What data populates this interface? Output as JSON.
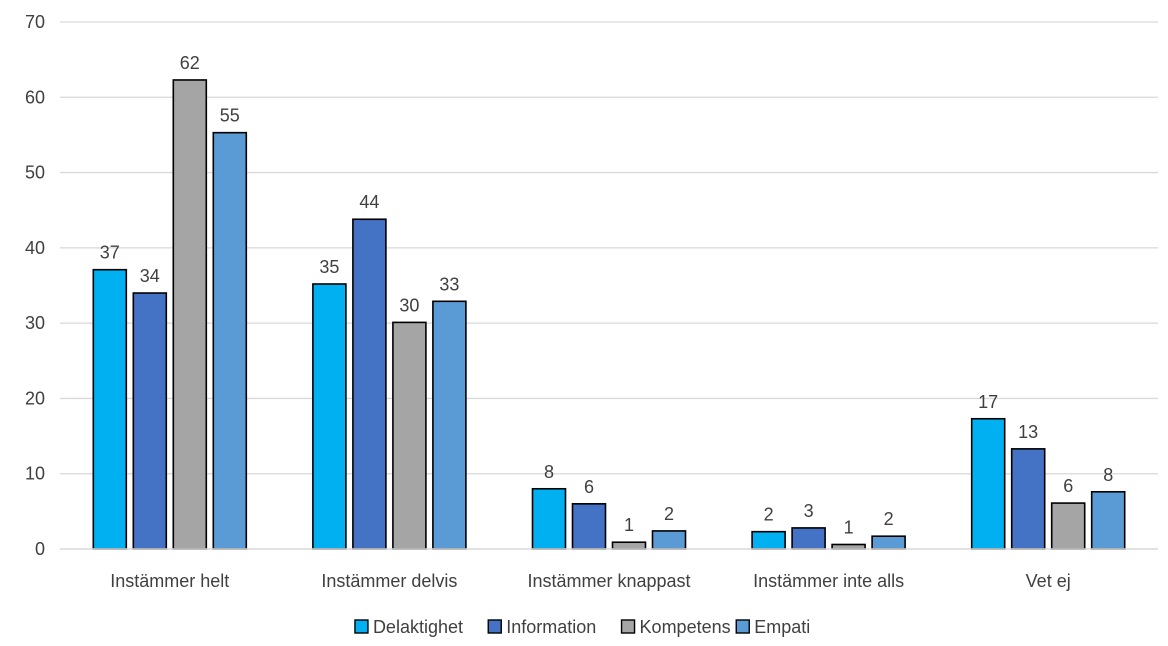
{
  "chart_data": {
    "type": "bar",
    "title": "",
    "xlabel": "",
    "ylabel": "",
    "ylim": [
      0,
      70
    ],
    "yticks": [
      0,
      10,
      20,
      30,
      40,
      50,
      60,
      70
    ],
    "grid": true,
    "legend_position": "bottom",
    "categories": [
      "Instämmer helt",
      "Instämmer delvis",
      "Instämmer knappast",
      "Instämmer inte alls",
      "Vet ej"
    ],
    "series": [
      {
        "name": "Delaktighet",
        "color": "#00B0F0",
        "values": [
          37.1,
          35.2,
          8.0,
          2.3,
          17.3
        ],
        "labels": [
          "37",
          "35",
          "8",
          "2",
          "17"
        ]
      },
      {
        "name": "Information",
        "color": "#4472C4",
        "values": [
          34.0,
          43.8,
          6.0,
          2.8,
          13.3
        ],
        "labels": [
          "34",
          "44",
          "6",
          "3",
          "13"
        ]
      },
      {
        "name": "Kompetens",
        "color": "#A5A5A5",
        "values": [
          62.3,
          30.1,
          0.9,
          0.6,
          6.1
        ],
        "labels": [
          "62",
          "30",
          "1",
          "1",
          "6"
        ]
      },
      {
        "name": "Empati",
        "color": "#5B9BD5",
        "values": [
          55.3,
          32.9,
          2.4,
          1.7,
          7.6
        ],
        "labels": [
          "55",
          "33",
          "2",
          "2",
          "8"
        ]
      }
    ]
  }
}
